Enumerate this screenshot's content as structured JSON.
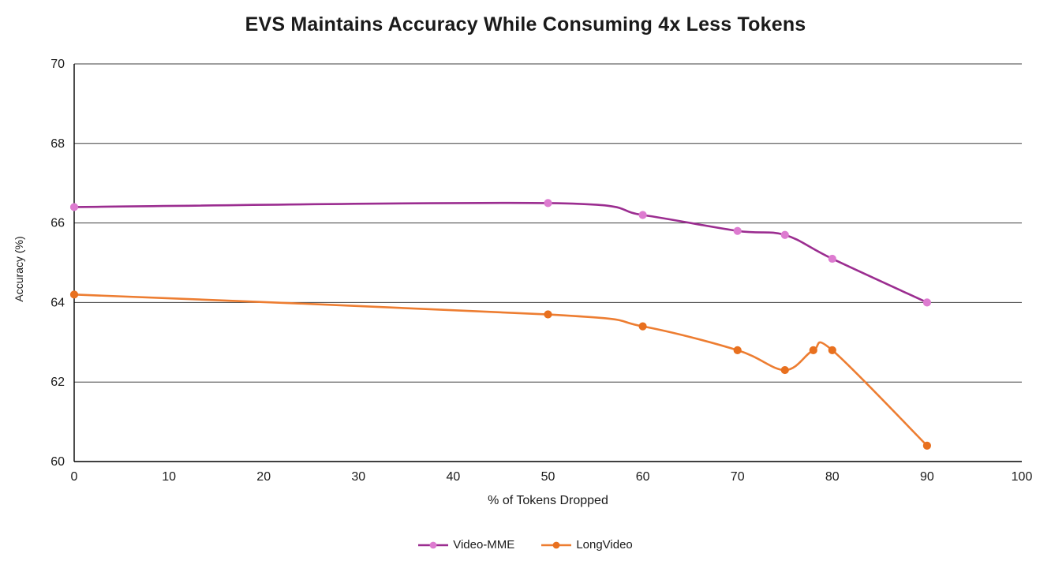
{
  "title": "EVS Maintains Accuracy While Consuming 4x Less Tokens",
  "chart_data": {
    "type": "line",
    "title": "EVS Maintains Accuracy While Consuming 4x Less Tokens",
    "xlabel": "% of Tokens Dropped",
    "ylabel": "Accuracy (%)",
    "xlim": [
      0,
      100
    ],
    "ylim": [
      60,
      70
    ],
    "xticks": [
      0,
      10,
      20,
      30,
      40,
      50,
      60,
      70,
      80,
      90,
      100
    ],
    "yticks": [
      60,
      62,
      64,
      66,
      68,
      70
    ],
    "grid": "horizontal",
    "gridline_color": "#3f3f3f",
    "axis_color": "#000000",
    "legend_position": "bottom",
    "series": [
      {
        "name": "Video-MME",
        "line_color": "#9b2d90",
        "marker_color": "#dd7bd0",
        "points": [
          [
            0,
            66.4
          ],
          [
            50,
            66.5
          ],
          [
            60,
            66.2
          ],
          [
            70,
            65.8
          ],
          [
            75,
            65.7
          ],
          [
            80,
            65.1
          ],
          [
            90,
            64.0
          ]
        ]
      },
      {
        "name": "LongVideo",
        "line_color": "#ed7d31",
        "marker_color": "#e8701f",
        "points": [
          [
            0,
            64.2
          ],
          [
            50,
            63.7
          ],
          [
            60,
            63.4
          ],
          [
            70,
            62.8
          ],
          [
            75,
            62.3
          ],
          [
            78,
            62.8
          ],
          [
            80,
            62.8
          ],
          [
            90,
            60.4
          ]
        ]
      }
    ]
  }
}
